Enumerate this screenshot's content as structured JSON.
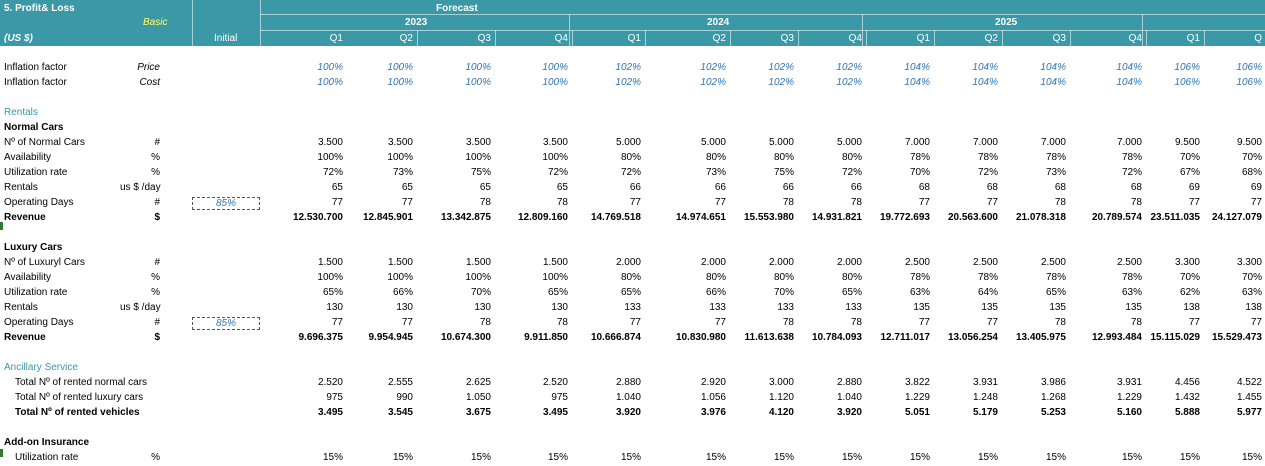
{
  "header": {
    "title": "5. Profit& Loss",
    "forecast": "Forecast",
    "scenario": "Basic",
    "currency": "(US $)",
    "initial": "Initial",
    "years": [
      "2023",
      "2024",
      "2025"
    ],
    "quarters": [
      "Q1",
      "Q2",
      "Q3",
      "Q4",
      "Q1",
      "Q2",
      "Q3",
      "Q4",
      "Q1",
      "Q2",
      "Q3",
      "Q4",
      "Q1",
      "Q"
    ]
  },
  "rows": [
    {
      "label": "Inflation factor",
      "unit": "Price",
      "style": "blue",
      "values": [
        "100%",
        "100%",
        "100%",
        "100%",
        "102%",
        "102%",
        "102%",
        "102%",
        "104%",
        "104%",
        "104%",
        "104%",
        "106%",
        "106%"
      ]
    },
    {
      "label": "Inflation factor",
      "unit": "Cost",
      "style": "blue",
      "values": [
        "100%",
        "100%",
        "100%",
        "100%",
        "102%",
        "102%",
        "102%",
        "102%",
        "104%",
        "104%",
        "104%",
        "104%",
        "106%",
        "106%"
      ]
    },
    {
      "label": "Rentals",
      "style": "sect"
    },
    {
      "label": "Normal Cars",
      "style": "bold"
    },
    {
      "label": "Nº of Normal Cars",
      "unit": "#",
      "values": [
        "3.500",
        "3.500",
        "3.500",
        "3.500",
        "5.000",
        "5.000",
        "5.000",
        "5.000",
        "7.000",
        "7.000",
        "7.000",
        "7.000",
        "9.500",
        "9.500"
      ]
    },
    {
      "label": "Availability",
      "unit": "%",
      "values": [
        "100%",
        "100%",
        "100%",
        "100%",
        "80%",
        "80%",
        "80%",
        "80%",
        "78%",
        "78%",
        "78%",
        "78%",
        "70%",
        "70%"
      ]
    },
    {
      "label": "Utilization rate",
      "unit": "%",
      "values": [
        "72%",
        "73%",
        "75%",
        "72%",
        "72%",
        "73%",
        "75%",
        "72%",
        "70%",
        "72%",
        "73%",
        "72%",
        "67%",
        "68%"
      ]
    },
    {
      "label": "Rentals",
      "unit": "us $ /day",
      "values": [
        "65",
        "65",
        "65",
        "65",
        "66",
        "66",
        "66",
        "66",
        "68",
        "68",
        "68",
        "68",
        "69",
        "69"
      ]
    },
    {
      "label": "Operating Days",
      "unit": "#",
      "box": "85%",
      "values": [
        "77",
        "77",
        "78",
        "78",
        "77",
        "77",
        "78",
        "78",
        "77",
        "77",
        "78",
        "78",
        "77",
        "77"
      ]
    },
    {
      "label": "Revenue",
      "unit": "$",
      "style": "bold",
      "values": [
        "12.530.700",
        "12.845.901",
        "13.342.875",
        "12.809.160",
        "14.769.518",
        "14.974.651",
        "15.553.980",
        "14.931.821",
        "19.772.693",
        "20.563.600",
        "21.078.318",
        "20.789.574",
        "23.511.035",
        "24.127.079"
      ]
    },
    {
      "label": "",
      "style": "blank"
    },
    {
      "label": "Luxury Cars",
      "style": "bold"
    },
    {
      "label": "Nº of Luxuryl Cars",
      "unit": "#",
      "values": [
        "1.500",
        "1.500",
        "1.500",
        "1.500",
        "2.000",
        "2.000",
        "2.000",
        "2.000",
        "2.500",
        "2.500",
        "2.500",
        "2.500",
        "3.300",
        "3.300"
      ]
    },
    {
      "label": "Availability",
      "unit": "%",
      "values": [
        "100%",
        "100%",
        "100%",
        "100%",
        "80%",
        "80%",
        "80%",
        "80%",
        "78%",
        "78%",
        "78%",
        "78%",
        "70%",
        "70%"
      ]
    },
    {
      "label": "Utilization rate",
      "unit": "%",
      "values": [
        "65%",
        "66%",
        "70%",
        "65%",
        "65%",
        "66%",
        "70%",
        "65%",
        "63%",
        "64%",
        "65%",
        "63%",
        "62%",
        "63%"
      ]
    },
    {
      "label": "Rentals",
      "unit": "us $ /day",
      "values": [
        "130",
        "130",
        "130",
        "130",
        "133",
        "133",
        "133",
        "133",
        "135",
        "135",
        "135",
        "135",
        "138",
        "138"
      ]
    },
    {
      "label": "Operating Days",
      "unit": "#",
      "box": "85%",
      "values": [
        "77",
        "77",
        "78",
        "78",
        "77",
        "77",
        "78",
        "78",
        "77",
        "77",
        "78",
        "78",
        "77",
        "77"
      ]
    },
    {
      "label": "Revenue",
      "unit": "$",
      "style": "bold",
      "values": [
        "9.696.375",
        "9.954.945",
        "10.674.300",
        "9.911.850",
        "10.666.874",
        "10.830.980",
        "11.613.638",
        "10.784.093",
        "12.711.017",
        "13.056.254",
        "13.405.975",
        "12.993.484",
        "15.115.029",
        "15.529.473"
      ]
    },
    {
      "label": "",
      "style": "blank"
    },
    {
      "label": "Ancillary Service",
      "style": "sect"
    },
    {
      "label": "Total Nº of rented normal cars",
      "values": [
        "2.520",
        "2.555",
        "2.625",
        "2.520",
        "2.880",
        "2.920",
        "3.000",
        "2.880",
        "3.822",
        "3.931",
        "3.986",
        "3.931",
        "4.456",
        "4.522"
      ]
    },
    {
      "label": "Total Nº of rented luxury cars",
      "values": [
        "975",
        "990",
        "1.050",
        "975",
        "1.040",
        "1.056",
        "1.120",
        "1.040",
        "1.229",
        "1.248",
        "1.268",
        "1.229",
        "1.432",
        "1.455"
      ]
    },
    {
      "label": "Total Nº of rented vehicles",
      "style": "bold",
      "values": [
        "3.495",
        "3.545",
        "3.675",
        "3.495",
        "3.920",
        "3.976",
        "4.120",
        "3.920",
        "5.051",
        "5.179",
        "5.253",
        "5.160",
        "5.888",
        "5.977"
      ]
    },
    {
      "label": "",
      "style": "blank"
    },
    {
      "label": "Add-on Insurance",
      "style": "bold"
    },
    {
      "label": "Utilization rate",
      "unit": "%",
      "values": [
        "15%",
        "15%",
        "15%",
        "15%",
        "15%",
        "15%",
        "15%",
        "15%",
        "15%",
        "15%",
        "15%",
        "15%",
        "15%",
        "15%"
      ]
    }
  ]
}
